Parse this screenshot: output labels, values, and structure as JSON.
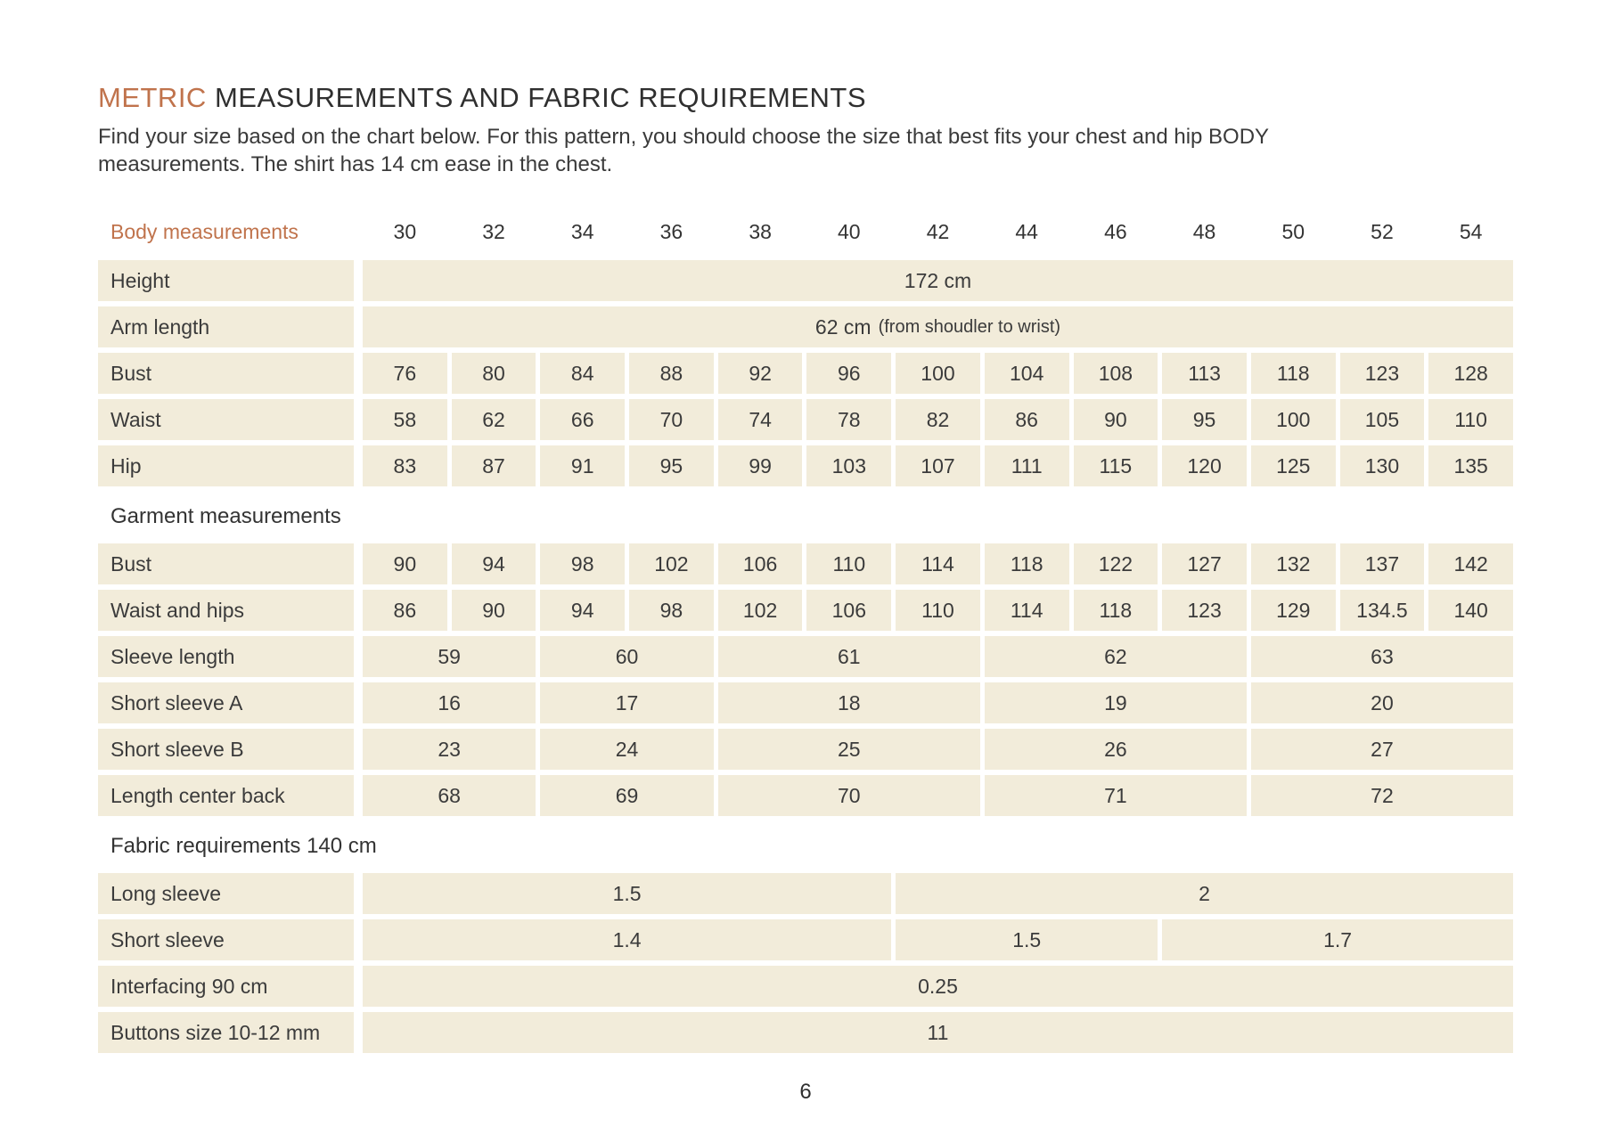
{
  "page": {
    "title_highlight": "METRIC",
    "title_rest": " MEASUREMENTS AND FABRIC REQUIREMENTS",
    "intro": "Find your size based on the chart below. For this pattern, you should choose the size that best fits your chest and hip BODY measurements. The shirt has 14 cm ease in the chest.",
    "page_number": "6"
  },
  "colors": {
    "accent": "#c0734c",
    "cell_background": "#f2ecda",
    "text": "#343434"
  },
  "table": {
    "corner_label": "Body measurements",
    "sizes": [
      "30",
      "32",
      "34",
      "36",
      "38",
      "40",
      "42",
      "44",
      "46",
      "48",
      "50",
      "52",
      "54"
    ],
    "sections": [
      {
        "header": null,
        "rows": [
          {
            "label": "Height",
            "cells": [
              {
                "text": "172 cm",
                "span": 13
              }
            ]
          },
          {
            "label": "Arm length",
            "cells": [
              {
                "text": "62 cm",
                "note": "(from shoudler to wrist)",
                "span": 13
              }
            ]
          },
          {
            "label": "Bust",
            "cells": [
              {
                "text": "76"
              },
              {
                "text": "80"
              },
              {
                "text": "84"
              },
              {
                "text": "88"
              },
              {
                "text": "92"
              },
              {
                "text": "96"
              },
              {
                "text": "100"
              },
              {
                "text": "104"
              },
              {
                "text": "108"
              },
              {
                "text": "113"
              },
              {
                "text": "118"
              },
              {
                "text": "123"
              },
              {
                "text": "128"
              }
            ]
          },
          {
            "label": "Waist",
            "cells": [
              {
                "text": "58"
              },
              {
                "text": "62"
              },
              {
                "text": "66"
              },
              {
                "text": "70"
              },
              {
                "text": "74"
              },
              {
                "text": "78"
              },
              {
                "text": "82"
              },
              {
                "text": "86"
              },
              {
                "text": "90"
              },
              {
                "text": "95"
              },
              {
                "text": "100"
              },
              {
                "text": "105"
              },
              {
                "text": "110"
              }
            ]
          },
          {
            "label": "Hip",
            "cells": [
              {
                "text": "83"
              },
              {
                "text": "87"
              },
              {
                "text": "91"
              },
              {
                "text": "95"
              },
              {
                "text": "99"
              },
              {
                "text": "103"
              },
              {
                "text": "107"
              },
              {
                "text": "111"
              },
              {
                "text": "115"
              },
              {
                "text": "120"
              },
              {
                "text": "125"
              },
              {
                "text": "130"
              },
              {
                "text": "135"
              }
            ]
          }
        ]
      },
      {
        "header": "Garment measurements",
        "rows": [
          {
            "label": "Bust",
            "cells": [
              {
                "text": "90"
              },
              {
                "text": "94"
              },
              {
                "text": "98"
              },
              {
                "text": "102"
              },
              {
                "text": "106"
              },
              {
                "text": "110"
              },
              {
                "text": "114"
              },
              {
                "text": "118"
              },
              {
                "text": "122"
              },
              {
                "text": "127"
              },
              {
                "text": "132"
              },
              {
                "text": "137"
              },
              {
                "text": "142"
              }
            ]
          },
          {
            "label": "Waist and hips",
            "cells": [
              {
                "text": "86"
              },
              {
                "text": "90"
              },
              {
                "text": "94"
              },
              {
                "text": "98"
              },
              {
                "text": "102"
              },
              {
                "text": "106"
              },
              {
                "text": "110"
              },
              {
                "text": "114"
              },
              {
                "text": "118"
              },
              {
                "text": "123"
              },
              {
                "text": "129"
              },
              {
                "text": "134.5"
              },
              {
                "text": "140"
              }
            ]
          },
          {
            "label": "Sleeve length",
            "cells": [
              {
                "text": "59",
                "span": 2
              },
              {
                "text": "60",
                "span": 2
              },
              {
                "text": "61",
                "span": 3
              },
              {
                "text": "62",
                "span": 3
              },
              {
                "text": "63",
                "span": 3
              }
            ]
          },
          {
            "label": "Short sleeve A",
            "cells": [
              {
                "text": "16",
                "span": 2
              },
              {
                "text": "17",
                "span": 2
              },
              {
                "text": "18",
                "span": 3
              },
              {
                "text": "19",
                "span": 3
              },
              {
                "text": "20",
                "span": 3
              }
            ]
          },
          {
            "label": "Short sleeve B",
            "cells": [
              {
                "text": "23",
                "span": 2
              },
              {
                "text": "24",
                "span": 2
              },
              {
                "text": "25",
                "span": 3
              },
              {
                "text": "26",
                "span": 3
              },
              {
                "text": "27",
                "span": 3
              }
            ]
          },
          {
            "label": "Length center back",
            "cells": [
              {
                "text": "68",
                "span": 2
              },
              {
                "text": "69",
                "span": 2
              },
              {
                "text": "70",
                "span": 3
              },
              {
                "text": "71",
                "span": 3
              },
              {
                "text": "72",
                "span": 3
              }
            ]
          }
        ]
      },
      {
        "header": "Fabric requirements 140 cm",
        "rows": [
          {
            "label": "Long sleeve",
            "cells": [
              {
                "text": "1.5",
                "span": 6
              },
              {
                "text": "2",
                "span": 7
              }
            ]
          },
          {
            "label": "Short sleeve",
            "cells": [
              {
                "text": "1.4",
                "span": 6
              },
              {
                "text": "1.5",
                "span": 3
              },
              {
                "text": "1.7",
                "span": 4
              }
            ]
          },
          {
            "label": "Interfacing 90 cm",
            "cells": [
              {
                "text": "0.25",
                "span": 13
              }
            ]
          },
          {
            "label": "Buttons size 10-12 mm",
            "cells": [
              {
                "text": "11",
                "span": 13
              }
            ]
          }
        ]
      }
    ]
  }
}
